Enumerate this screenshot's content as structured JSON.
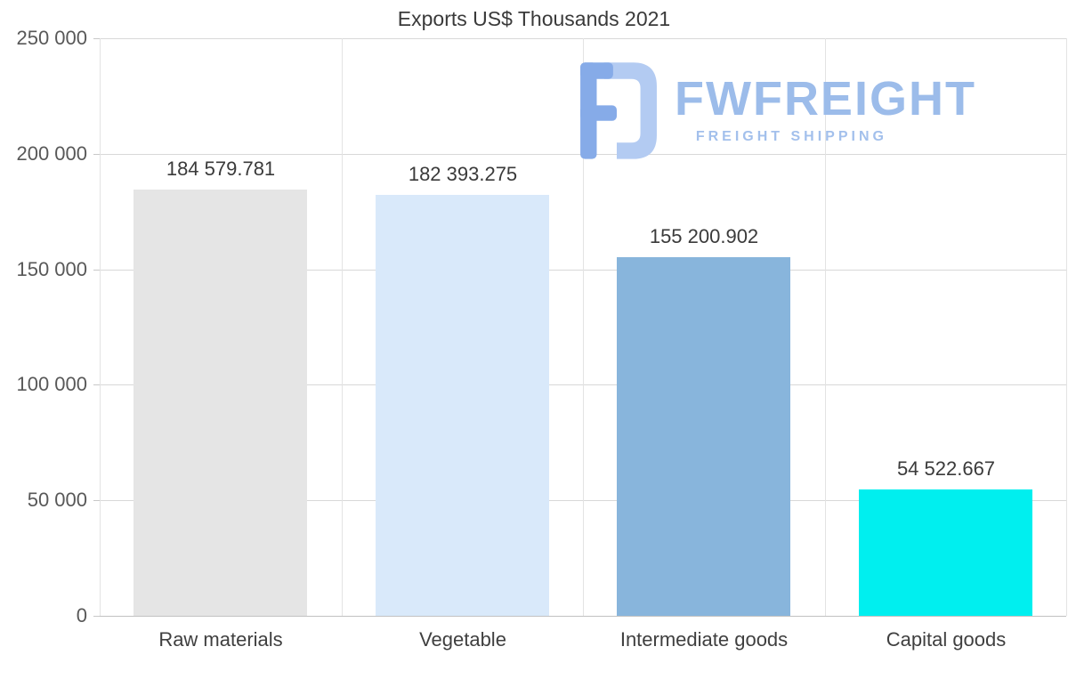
{
  "title": "Exports US$ Thousands 2021",
  "watermark": {
    "brand": "FWFREIGHT",
    "tagline": "FREIGHT SHIPPING",
    "color": "#9cbcea"
  },
  "chart_data": {
    "type": "bar",
    "title": "Exports US$ Thousands 2021",
    "categories": [
      "Raw materials",
      "Vegetable",
      "Intermediate goods",
      "Capital goods"
    ],
    "values": [
      184579.781,
      182393.275,
      155200.902,
      54522.667
    ],
    "value_labels": [
      "184 579.781",
      "182 393.275",
      "155 200.902",
      "54 522.667"
    ],
    "bar_colors": [
      "#e5e5e5",
      "#d9e9fa",
      "#88b5dc",
      "#00efef"
    ],
    "xlabel": "",
    "ylabel": "",
    "ylim": [
      0,
      250000
    ],
    "ytick_labels": [
      "0",
      "50 000",
      "100 000",
      "150 000",
      "200 000",
      "250 000"
    ],
    "grid": true,
    "legend": false
  }
}
